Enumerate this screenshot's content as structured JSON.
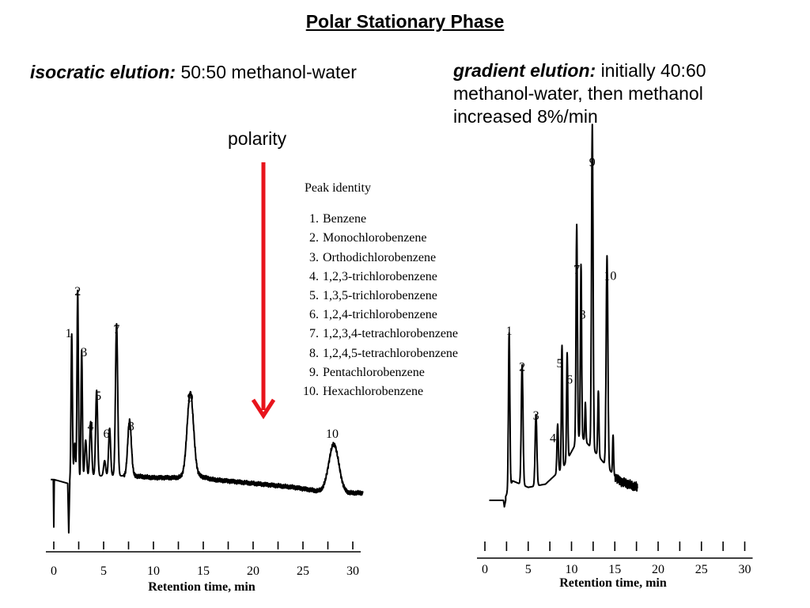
{
  "slide": {
    "title": "Polar Stationary Phase",
    "isocratic": {
      "lead": "isocratic elution:",
      "text": "50:50 methanol-water"
    },
    "gradient": {
      "lead": "gradient elution:",
      "text": "initially 40:60 methanol-water, then methanol increased 8%/min"
    },
    "polarity_label": "polarity",
    "arrow_color": "#e8141c"
  },
  "legend": {
    "title": "Peak identity",
    "items": [
      {
        "num": "1.",
        "name": "Benzene"
      },
      {
        "num": "2.",
        "name": "Monochlorobenzene"
      },
      {
        "num": "3.",
        "name": "Orthodichlorobenzene"
      },
      {
        "num": "4.",
        "name": "1,2,3-trichlorobenzene"
      },
      {
        "num": "5.",
        "name": "1,3,5-trichlorobenzene"
      },
      {
        "num": "6.",
        "name": "1,2,4-trichlorobenzene"
      },
      {
        "num": "7.",
        "name": "1,2,3,4-tetrachlorobenzene"
      },
      {
        "num": "8.",
        "name": "1,2,4,5-tetrachlorobenzene"
      },
      {
        "num": "9.",
        "name": "Pentachlorobenzene"
      },
      {
        "num": "10.",
        "name": "Hexachlorobenzene"
      }
    ]
  },
  "chart_data": [
    {
      "type": "line",
      "title": "isocratic elution",
      "xlabel": "Retention time, min",
      "ylabel": "",
      "xlim": [
        0,
        30
      ],
      "xticks": [
        0,
        5,
        10,
        15,
        20,
        25,
        30
      ],
      "grid": false,
      "baseline": [
        [
          -0.3,
          0.08
        ],
        [
          1.5,
          0.06
        ],
        [
          2,
          0.07
        ],
        [
          4,
          0.1
        ],
        [
          6,
          0.1
        ],
        [
          8,
          0.1
        ],
        [
          10,
          0.09
        ],
        [
          12,
          0.09
        ],
        [
          14.5,
          0.1
        ],
        [
          16,
          0.08
        ],
        [
          20,
          0.06
        ],
        [
          24,
          0.04
        ],
        [
          26.5,
          0.02
        ],
        [
          27.5,
          0.02
        ],
        [
          29,
          0.01
        ],
        [
          31,
          0.01
        ]
      ],
      "peaks": [
        {
          "label": "1",
          "rt": 1.8,
          "height": 0.78
        },
        {
          "label": "2",
          "rt": 2.4,
          "height": 1.0
        },
        {
          "label": "3",
          "rt": 2.8,
          "height": 0.68
        },
        {
          "label": "4",
          "rt": 3.7,
          "height": 0.29
        },
        {
          "label": "5",
          "rt": 4.3,
          "height": 0.45
        },
        {
          "label": "6",
          "rt": 5.6,
          "height": 0.25
        },
        {
          "label": "7",
          "rt": 6.3,
          "height": 0.8
        },
        {
          "label": "8",
          "rt": 7.6,
          "height": 0.29
        },
        {
          "label": "9",
          "rt": 13.7,
          "height": 0.44
        },
        {
          "label": "10",
          "rt": 28.1,
          "height": 0.25
        }
      ]
    },
    {
      "type": "line",
      "title": "gradient elution",
      "xlabel": "Retention time, min",
      "ylabel": "",
      "xlim": [
        0,
        30
      ],
      "xticks": [
        0,
        5,
        10,
        15,
        20,
        25,
        30
      ],
      "grid": false,
      "baseline": [
        [
          0.5,
          0.0
        ],
        [
          2.2,
          0.0
        ],
        [
          3.2,
          0.06
        ],
        [
          5,
          0.04
        ],
        [
          7,
          0.05
        ],
        [
          9,
          0.1
        ],
        [
          11,
          0.2
        ],
        [
          13,
          0.14
        ],
        [
          14.5,
          0.09
        ],
        [
          15.5,
          0.06
        ],
        [
          17.6,
          0.04
        ]
      ],
      "peaks": [
        {
          "label": "1",
          "rt": 2.8,
          "height": 0.48
        },
        {
          "label": "2",
          "rt": 4.3,
          "height": 0.37
        },
        {
          "label": "3",
          "rt": 5.9,
          "height": 0.22
        },
        {
          "label": "4",
          "rt": 8.4,
          "height": 0.15
        },
        {
          "label": "5",
          "rt": 8.9,
          "height": 0.38
        },
        {
          "label": "6",
          "rt": 9.5,
          "height": 0.33
        },
        {
          "label": "7",
          "rt": 10.6,
          "height": 0.67
        },
        {
          "label": "8",
          "rt": 11.1,
          "height": 0.53
        },
        {
          "label": "9",
          "rt": 12.4,
          "height": 1.0
        },
        {
          "label": "10",
          "rt": 14.1,
          "height": 0.65
        }
      ]
    }
  ]
}
